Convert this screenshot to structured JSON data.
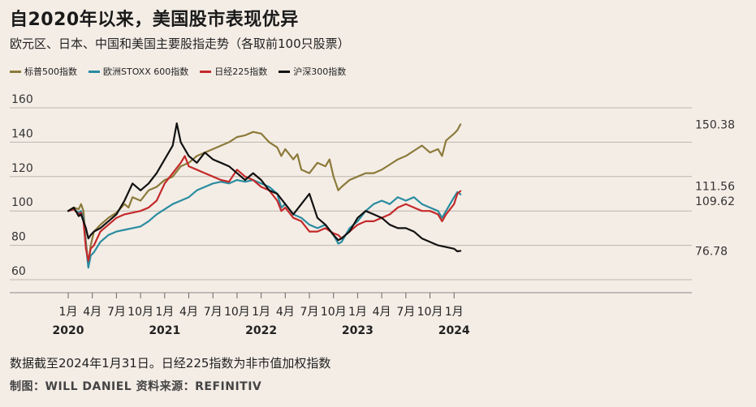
{
  "title": "自2020年以来，美国股市表现优异",
  "subtitle": "欧元区、日本、中国和美国主要股指走势（各取前100只股票）",
  "footnote": "数据截至2024年1月31日。日经225指数为非市值加权指数",
  "credit": "制图：WILL DANIEL 资料来源：REFINITIV",
  "chart_data": {
    "type": "line",
    "title": "自2020年以来，美国股市表现优异",
    "xlabel": "",
    "ylabel": "",
    "ylim": [
      60,
      160
    ],
    "yticks": [
      60,
      80,
      100,
      120,
      140,
      160
    ],
    "grid": true,
    "legend_position": "top-left",
    "x_tick_labels": [
      "1月",
      "4月",
      "7月",
      "10月",
      "1月",
      "4月",
      "7月",
      "10月",
      "1月",
      "4月",
      "7月",
      "10月",
      "1月",
      "4月",
      "7月",
      "10月",
      "1月"
    ],
    "x_tick_months": [
      0,
      3,
      6,
      9,
      12,
      15,
      18,
      21,
      24,
      27,
      30,
      33,
      36,
      39,
      42,
      45,
      48
    ],
    "year_labels": [
      {
        "label": "2020",
        "month": 0
      },
      {
        "label": "2021",
        "month": 12
      },
      {
        "label": "2022",
        "month": 24
      },
      {
        "label": "2023",
        "month": 36
      },
      {
        "label": "2024",
        "month": 48
      }
    ],
    "x_unit": "months since Jan 2020",
    "series": [
      {
        "name": "标普500指数",
        "color": "#8c7a3a",
        "end_label": "150.38",
        "points": [
          [
            0,
            100
          ],
          [
            0.7,
            102
          ],
          [
            1.3,
            101
          ],
          [
            1.6,
            104
          ],
          [
            1.9,
            100
          ],
          [
            2.2,
            82
          ],
          [
            2.5,
            69
          ],
          [
            2.8,
            80
          ],
          [
            3.2,
            88
          ],
          [
            4,
            92
          ],
          [
            5,
            96
          ],
          [
            6,
            99
          ],
          [
            7,
            104
          ],
          [
            7.5,
            102
          ],
          [
            8,
            108
          ],
          [
            9,
            106
          ],
          [
            10,
            112
          ],
          [
            11,
            114
          ],
          [
            12,
            118
          ],
          [
            13,
            120
          ],
          [
            14,
            126
          ],
          [
            15,
            128
          ],
          [
            16,
            132
          ],
          [
            17,
            134
          ],
          [
            18,
            136
          ],
          [
            19,
            138
          ],
          [
            20,
            140
          ],
          [
            21,
            143
          ],
          [
            22,
            144
          ],
          [
            23,
            146
          ],
          [
            24,
            145
          ],
          [
            25,
            140
          ],
          [
            26,
            137
          ],
          [
            26.5,
            132
          ],
          [
            27,
            136
          ],
          [
            28,
            130
          ],
          [
            28.5,
            133
          ],
          [
            29,
            124
          ],
          [
            30,
            122
          ],
          [
            31,
            128
          ],
          [
            32,
            126
          ],
          [
            32.5,
            130
          ],
          [
            33,
            120
          ],
          [
            33.6,
            112
          ],
          [
            34,
            114
          ],
          [
            35,
            118
          ],
          [
            36,
            120
          ],
          [
            37,
            122
          ],
          [
            38,
            122
          ],
          [
            39,
            124
          ],
          [
            40,
            127
          ],
          [
            41,
            130
          ],
          [
            42,
            132
          ],
          [
            43,
            135
          ],
          [
            44,
            138
          ],
          [
            45,
            134
          ],
          [
            46,
            136
          ],
          [
            46.5,
            132
          ],
          [
            47,
            141
          ],
          [
            48,
            145
          ],
          [
            48.4,
            147
          ],
          [
            48.8,
            150.38
          ]
        ]
      },
      {
        "name": "欧洲STOXX 600指数",
        "color": "#2a8ca0",
        "end_label": "109.62",
        "points": [
          [
            0,
            100
          ],
          [
            0.7,
            101
          ],
          [
            1.3,
            99
          ],
          [
            1.6,
            100
          ],
          [
            1.9,
            96
          ],
          [
            2.2,
            80
          ],
          [
            2.5,
            67
          ],
          [
            2.8,
            74
          ],
          [
            3.2,
            76
          ],
          [
            4,
            82
          ],
          [
            5,
            86
          ],
          [
            6,
            88
          ],
          [
            7,
            89
          ],
          [
            8,
            90
          ],
          [
            9,
            91
          ],
          [
            10,
            94
          ],
          [
            11,
            98
          ],
          [
            12,
            101
          ],
          [
            13,
            104
          ],
          [
            14,
            106
          ],
          [
            15,
            108
          ],
          [
            16,
            112
          ],
          [
            17,
            114
          ],
          [
            18,
            116
          ],
          [
            19,
            117
          ],
          [
            20,
            116
          ],
          [
            21,
            118
          ],
          [
            22,
            117
          ],
          [
            23,
            118
          ],
          [
            24,
            116
          ],
          [
            25,
            114
          ],
          [
            26,
            110
          ],
          [
            26.5,
            102
          ],
          [
            27,
            104
          ],
          [
            28,
            98
          ],
          [
            29,
            96
          ],
          [
            30,
            92
          ],
          [
            31,
            90
          ],
          [
            32,
            92
          ],
          [
            33,
            86
          ],
          [
            33.6,
            81
          ],
          [
            34,
            82
          ],
          [
            35,
            90
          ],
          [
            36,
            94
          ],
          [
            37,
            100
          ],
          [
            38,
            104
          ],
          [
            39,
            106
          ],
          [
            40,
            104
          ],
          [
            41,
            108
          ],
          [
            42,
            106
          ],
          [
            43,
            108
          ],
          [
            44,
            104
          ],
          [
            45,
            102
          ],
          [
            46,
            100
          ],
          [
            46.5,
            96
          ],
          [
            47,
            100
          ],
          [
            48,
            108
          ],
          [
            48.4,
            111
          ],
          [
            48.8,
            109.62
          ]
        ]
      },
      {
        "name": "日经225指数",
        "color": "#c42a2a",
        "end_label": "111.56",
        "points": [
          [
            0,
            100
          ],
          [
            0.7,
            101
          ],
          [
            1.3,
            98
          ],
          [
            1.6,
            99
          ],
          [
            1.9,
            94
          ],
          [
            2.2,
            78
          ],
          [
            2.5,
            71
          ],
          [
            2.8,
            78
          ],
          [
            3.2,
            80
          ],
          [
            4,
            88
          ],
          [
            5,
            92
          ],
          [
            6,
            96
          ],
          [
            7,
            98
          ],
          [
            8,
            99
          ],
          [
            9,
            100
          ],
          [
            10,
            102
          ],
          [
            11,
            106
          ],
          [
            12,
            116
          ],
          [
            13,
            122
          ],
          [
            14,
            128
          ],
          [
            14.5,
            132
          ],
          [
            15,
            126
          ],
          [
            16,
            124
          ],
          [
            17,
            122
          ],
          [
            18,
            120
          ],
          [
            19,
            118
          ],
          [
            20,
            117
          ],
          [
            21,
            124
          ],
          [
            22,
            120
          ],
          [
            23,
            118
          ],
          [
            24,
            114
          ],
          [
            25,
            112
          ],
          [
            26,
            106
          ],
          [
            26.5,
            100
          ],
          [
            27,
            102
          ],
          [
            28,
            96
          ],
          [
            29,
            94
          ],
          [
            30,
            88
          ],
          [
            31,
            88
          ],
          [
            32,
            90
          ],
          [
            33,
            87
          ],
          [
            33.6,
            86
          ],
          [
            34,
            84
          ],
          [
            35,
            88
          ],
          [
            36,
            92
          ],
          [
            37,
            94
          ],
          [
            38,
            94
          ],
          [
            39,
            96
          ],
          [
            40,
            98
          ],
          [
            41,
            102
          ],
          [
            42,
            104
          ],
          [
            43,
            102
          ],
          [
            44,
            100
          ],
          [
            45,
            100
          ],
          [
            46,
            98
          ],
          [
            46.5,
            94
          ],
          [
            47,
            98
          ],
          [
            48,
            104
          ],
          [
            48.4,
            110
          ],
          [
            48.8,
            111.56
          ]
        ]
      },
      {
        "name": "沪深300指数",
        "color": "#111111",
        "end_label": "76.78",
        "points": [
          [
            0,
            100
          ],
          [
            0.7,
            102
          ],
          [
            1.3,
            97
          ],
          [
            1.6,
            98
          ],
          [
            1.9,
            94
          ],
          [
            2.2,
            90
          ],
          [
            2.5,
            84
          ],
          [
            2.8,
            86
          ],
          [
            3.2,
            88
          ],
          [
            4,
            90
          ],
          [
            5,
            94
          ],
          [
            6,
            98
          ],
          [
            7,
            106
          ],
          [
            8,
            116
          ],
          [
            9,
            112
          ],
          [
            10,
            116
          ],
          [
            11,
            122
          ],
          [
            12,
            130
          ],
          [
            13,
            138
          ],
          [
            13.5,
            151
          ],
          [
            14,
            140
          ],
          [
            15,
            132
          ],
          [
            16,
            128
          ],
          [
            17,
            134
          ],
          [
            18,
            130
          ],
          [
            19,
            128
          ],
          [
            20,
            126
          ],
          [
            21,
            122
          ],
          [
            22,
            118
          ],
          [
            23,
            122
          ],
          [
            24,
            118
          ],
          [
            25,
            112
          ],
          [
            26,
            110
          ],
          [
            27,
            104
          ],
          [
            28,
            98
          ],
          [
            29,
            104
          ],
          [
            30,
            110
          ],
          [
            31,
            96
          ],
          [
            32,
            92
          ],
          [
            33,
            86
          ],
          [
            33.6,
            83
          ],
          [
            34,
            84
          ],
          [
            35,
            88
          ],
          [
            36,
            96
          ],
          [
            37,
            100
          ],
          [
            38,
            98
          ],
          [
            39,
            96
          ],
          [
            40,
            92
          ],
          [
            41,
            90
          ],
          [
            42,
            90
          ],
          [
            43,
            88
          ],
          [
            44,
            84
          ],
          [
            45,
            82
          ],
          [
            46,
            80
          ],
          [
            47,
            79
          ],
          [
            48,
            78
          ],
          [
            48.4,
            76.5
          ],
          [
            48.8,
            76.78
          ]
        ]
      }
    ]
  }
}
